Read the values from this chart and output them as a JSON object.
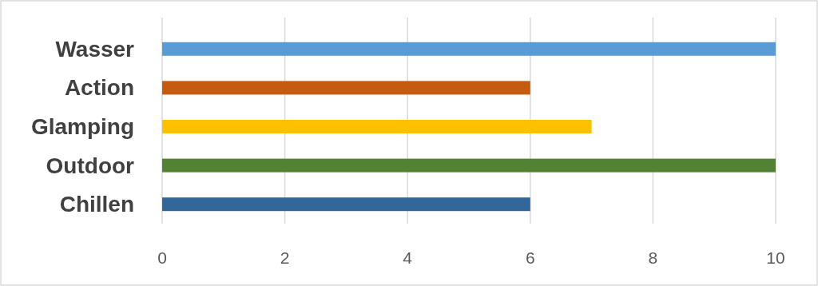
{
  "chart_data": {
    "type": "bar",
    "orientation": "horizontal",
    "categories": [
      "Wasser",
      "Action",
      "Glamping",
      "Outdoor",
      "Chillen"
    ],
    "values": [
      10,
      6,
      7,
      10,
      6
    ],
    "colors": [
      "#5b9bd5",
      "#c55a11",
      "#ffc000",
      "#548235",
      "#336699"
    ],
    "xlim": [
      0,
      10
    ],
    "xticks": [
      0,
      2,
      4,
      6,
      8,
      10
    ],
    "grid": "x"
  }
}
